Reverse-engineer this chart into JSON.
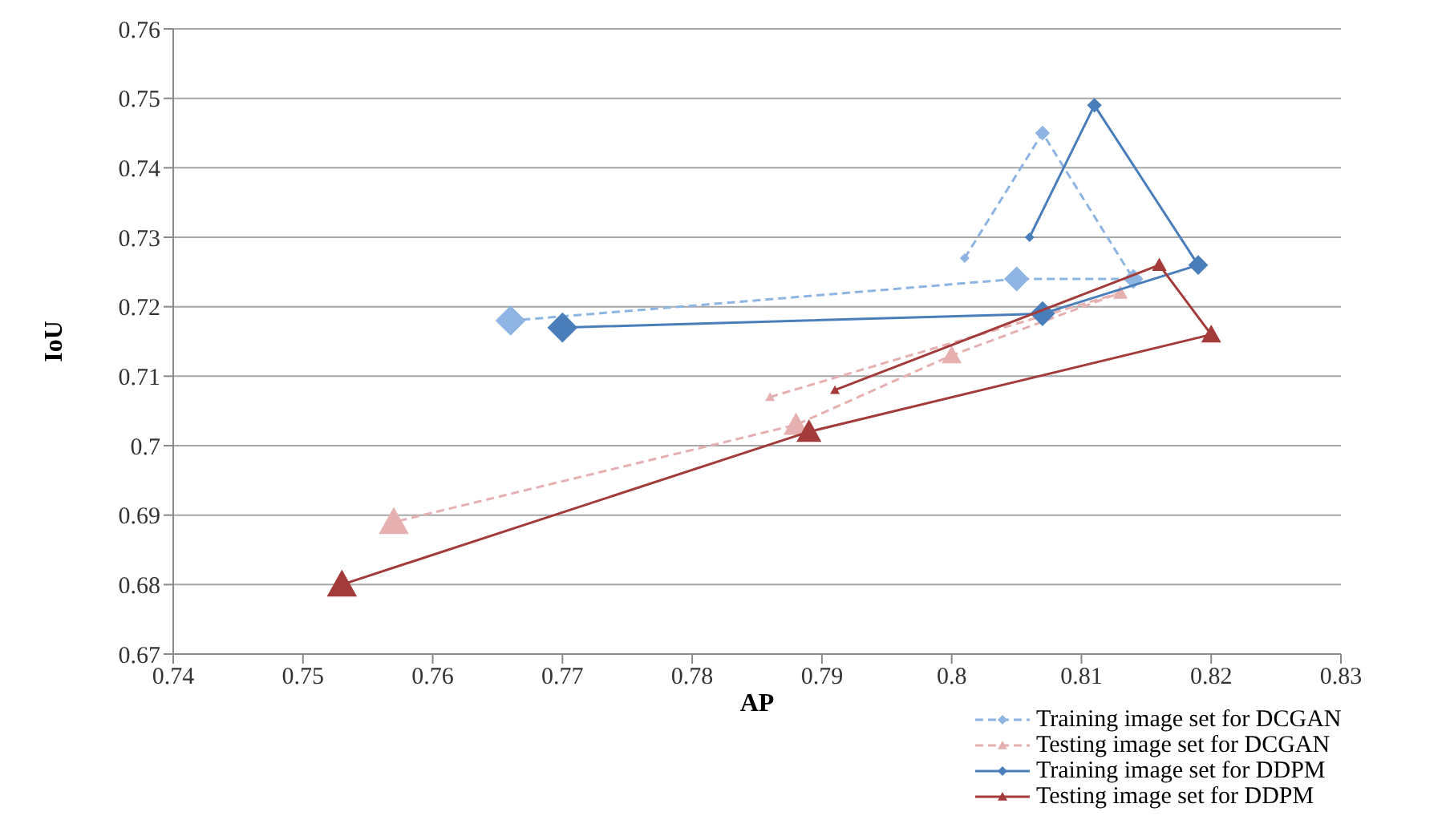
{
  "chart_data": {
    "type": "line",
    "xlabel": "AP",
    "ylabel": "IoU",
    "xlim": [
      0.74,
      0.83
    ],
    "xticks": [
      0.74,
      0.75,
      0.76,
      0.77,
      0.78,
      0.79,
      0.8,
      0.81,
      0.82,
      0.83
    ],
    "ylim": [
      0.67,
      0.76
    ],
    "yticks": [
      0.67,
      0.68,
      0.69,
      0.7,
      0.71,
      0.72,
      0.73,
      0.74,
      0.75,
      0.76
    ],
    "grid": "y",
    "legend": "bottom right",
    "series": [
      {
        "name": "Training image set for DCGAN",
        "color": "#8db4e2",
        "line_style": "dashed",
        "marker": "diamond",
        "x": [
          0.801,
          0.807,
          0.814,
          0.805,
          0.766
        ],
        "values": [
          0.727,
          0.745,
          0.724,
          0.724,
          0.718
        ]
      },
      {
        "name": "Testing image set for DCGAN",
        "color": "#e6b0b0",
        "line_style": "dashed",
        "marker": "triangle",
        "x": [
          0.786,
          0.813,
          0.8,
          0.788,
          0.757
        ],
        "values": [
          0.707,
          0.722,
          0.713,
          0.703,
          0.689
        ]
      },
      {
        "name": "Training image set for DDPM",
        "color": "#4a7ebb",
        "line_style": "solid",
        "marker": "diamond",
        "x": [
          0.806,
          0.811,
          0.819,
          0.807,
          0.77
        ],
        "values": [
          0.73,
          0.749,
          0.726,
          0.719,
          0.717
        ]
      },
      {
        "name": "Testing image set for DDPM",
        "color": "#a33b3b",
        "line_style": "solid",
        "marker": "triangle",
        "x": [
          0.791,
          0.816,
          0.82,
          0.789,
          0.753
        ],
        "values": [
          0.708,
          0.726,
          0.716,
          0.702,
          0.68
        ]
      }
    ]
  }
}
